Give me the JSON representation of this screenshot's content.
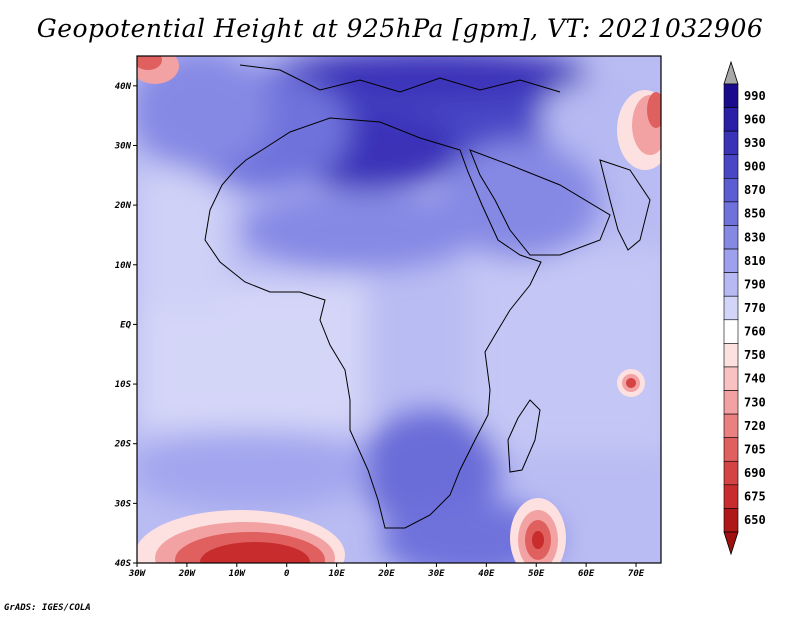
{
  "title": "Geopotential Height at 925hPa [gpm], VT: 2021032906",
  "footer": "GrADS: IGES/COLA",
  "lat_labels": [
    "40N",
    "30N",
    "20N",
    "10N",
    "EQ",
    "10S",
    "20S",
    "30S",
    "40S"
  ],
  "lat_values": [
    40,
    30,
    20,
    10,
    0,
    -10,
    -20,
    -30,
    -40
  ],
  "lon_labels": [
    "30W",
    "20W",
    "10W",
    "0",
    "10E",
    "20E",
    "30E",
    "40E",
    "50E",
    "60E",
    "70E"
  ],
  "lon_values": [
    -30,
    -20,
    -10,
    0,
    10,
    20,
    30,
    40,
    50,
    60,
    70
  ],
  "colorbar": {
    "levels": [
      "990",
      "960",
      "930",
      "900",
      "870",
      "850",
      "830",
      "810",
      "790",
      "770",
      "760",
      "750",
      "740",
      "730",
      "720",
      "705",
      "690",
      "675",
      "650"
    ],
    "colors": [
      "#1a0a8c",
      "#2a1fa6",
      "#3a33b8",
      "#4a47c6",
      "#5c5dd2",
      "#7072dc",
      "#8689e4",
      "#9da0ec",
      "#b6b9f2",
      "#d2d4f8",
      "#ffffff",
      "#fde0e0",
      "#f8c2c2",
      "#f2a2a2",
      "#ea8080",
      "#e06060",
      "#d44444",
      "#c82c2c",
      "#b01818"
    ]
  }
}
